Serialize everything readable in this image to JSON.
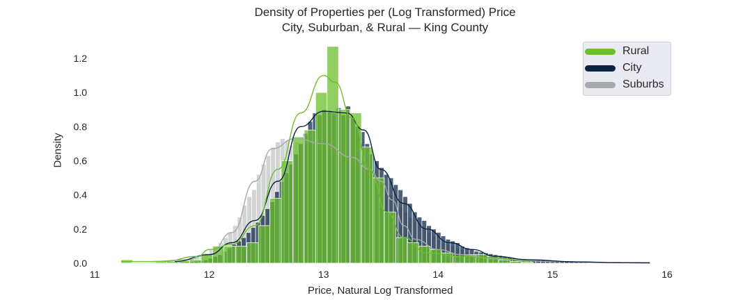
{
  "chart_data": {
    "type": "histogram",
    "title": "Density of Properties per (Log Transformed) Price",
    "subtitle": "City, Suburban, & Rural — King County",
    "xlabel": "Price, Natural Log Transformed",
    "ylabel": "Density",
    "xlim": [
      11,
      16
    ],
    "ylim": [
      0,
      1.3
    ],
    "xticks": [
      "11",
      "12",
      "13",
      "14",
      "15",
      "16"
    ],
    "yticks": [
      "0.0",
      "0.2",
      "0.4",
      "0.6",
      "0.8",
      "1.0",
      "1.2"
    ],
    "grid": false,
    "legend_position": "top-right",
    "series": [
      {
        "name": "Suburbs",
        "color": "#a5aaab",
        "bin_start": 11.5,
        "bin_width": 0.0415,
        "values": [
          0.005,
          0.005,
          0.006,
          0.008,
          0.01,
          0.012,
          0.015,
          0.02,
          0.028,
          0.035,
          0.045,
          0.06,
          0.08,
          0.1,
          0.12,
          0.15,
          0.18,
          0.22,
          0.27,
          0.34,
          0.39,
          0.43,
          0.52,
          0.58,
          0.63,
          0.68,
          0.71,
          0.73,
          0.72,
          0.69,
          0.71,
          0.7,
          0.7,
          0.7,
          0.69,
          0.67,
          0.66,
          0.66,
          0.64,
          0.63,
          0.62,
          0.6,
          0.58,
          0.57,
          0.55,
          0.52,
          0.5,
          0.48,
          0.46,
          0.44,
          0.4,
          0.37,
          0.33,
          0.3,
          0.27,
          0.24,
          0.22,
          0.2,
          0.18,
          0.16,
          0.14,
          0.12,
          0.11,
          0.1,
          0.09,
          0.08,
          0.07,
          0.06,
          0.055,
          0.05,
          0.045,
          0.04,
          0.035,
          0.03,
          0.028,
          0.026,
          0.024,
          0.022,
          0.02,
          0.018,
          0.016,
          0.015,
          0.014,
          0.012,
          0.011,
          0.01,
          0.009,
          0.008,
          0.007,
          0.006,
          0.005,
          0.005,
          0.004,
          0.004,
          0.004,
          0.003,
          0.003,
          0.003,
          0.002,
          0.002,
          0.002,
          0.002,
          0.002,
          0.002,
          0.002,
          0.002,
          0.002,
          0.002,
          0.002,
          0.002
        ],
        "kde": [
          [
            11.5,
            0.01
          ],
          [
            11.8,
            0.02
          ],
          [
            12.0,
            0.05
          ],
          [
            12.2,
            0.18
          ],
          [
            12.4,
            0.48
          ],
          [
            12.55,
            0.67
          ],
          [
            12.75,
            0.73
          ],
          [
            13.0,
            0.7
          ],
          [
            13.25,
            0.62
          ],
          [
            13.4,
            0.55
          ],
          [
            13.5,
            0.48
          ],
          [
            13.6,
            0.37
          ],
          [
            13.7,
            0.22
          ],
          [
            13.8,
            0.14
          ],
          [
            14.0,
            0.08
          ],
          [
            14.2,
            0.05
          ],
          [
            14.5,
            0.025
          ],
          [
            15.0,
            0.01
          ],
          [
            15.5,
            0.004
          ],
          [
            15.85,
            0.002
          ]
        ]
      },
      {
        "name": "City",
        "color": "#0a2444",
        "bin_start": 11.7,
        "bin_width": 0.0415,
        "values": [
          0.005,
          0.006,
          0.008,
          0.01,
          0.012,
          0.015,
          0.02,
          0.03,
          0.04,
          0.05,
          0.07,
          0.09,
          0.11,
          0.13,
          0.15,
          0.18,
          0.21,
          0.24,
          0.28,
          0.32,
          0.36,
          0.42,
          0.48,
          0.53,
          0.58,
          0.64,
          0.7,
          0.76,
          0.83,
          0.88,
          0.87,
          0.9,
          0.89,
          0.88,
          0.91,
          0.87,
          0.92,
          0.85,
          0.8,
          0.77,
          0.7,
          0.64,
          0.6,
          0.56,
          0.52,
          0.5,
          0.46,
          0.43,
          0.39,
          0.35,
          0.3,
          0.27,
          0.25,
          0.22,
          0.2,
          0.18,
          0.16,
          0.14,
          0.13,
          0.12,
          0.1,
          0.09,
          0.08,
          0.07,
          0.065,
          0.06,
          0.055,
          0.05,
          0.045,
          0.04,
          0.035,
          0.03,
          0.028,
          0.026,
          0.024,
          0.022,
          0.02,
          0.018,
          0.016,
          0.014,
          0.012,
          0.011,
          0.01,
          0.009,
          0.008,
          0.007,
          0.006,
          0.005,
          0.005,
          0.004,
          0.004,
          0.004,
          0.003,
          0.003,
          0.003,
          0.002,
          0.002
        ],
        "kde": [
          [
            11.7,
            0.01
          ],
          [
            12.0,
            0.05
          ],
          [
            12.2,
            0.12
          ],
          [
            12.4,
            0.25
          ],
          [
            12.6,
            0.48
          ],
          [
            12.8,
            0.8
          ],
          [
            13.0,
            0.89
          ],
          [
            13.2,
            0.88
          ],
          [
            13.35,
            0.78
          ],
          [
            13.5,
            0.55
          ],
          [
            13.7,
            0.35
          ],
          [
            13.9,
            0.2
          ],
          [
            14.1,
            0.12
          ],
          [
            14.3,
            0.08
          ],
          [
            14.5,
            0.04
          ],
          [
            14.8,
            0.02
          ],
          [
            15.2,
            0.008
          ],
          [
            15.6,
            0.003
          ],
          [
            15.85,
            0.002
          ]
        ]
      },
      {
        "name": "Rural",
        "color": "#6cbf2f",
        "bin_start": 11.23,
        "bin_width": 0.1,
        "values": [
          0.02,
          0.005,
          0.005,
          0.008,
          0.01,
          0.015,
          0.02,
          0.05,
          0.1,
          0.1,
          0.1,
          0.12,
          0.22,
          0.38,
          0.6,
          0.74,
          0.78,
          1.0,
          1.27,
          0.9,
          0.88,
          0.68,
          0.5,
          0.3,
          0.15,
          0.12,
          0.1,
          0.08,
          0.06,
          0.04,
          0.05,
          0.05,
          0.04,
          0.02,
          0.01,
          0.005
        ],
        "kde": [
          [
            11.23,
            0.01
          ],
          [
            11.6,
            0.01
          ],
          [
            11.9,
            0.04
          ],
          [
            12.0,
            0.08
          ],
          [
            12.2,
            0.11
          ],
          [
            12.4,
            0.22
          ],
          [
            12.6,
            0.55
          ],
          [
            12.8,
            0.88
          ],
          [
            13.0,
            1.1
          ],
          [
            13.1,
            1.06
          ],
          [
            13.25,
            0.85
          ],
          [
            13.4,
            0.55
          ],
          [
            13.55,
            0.3
          ],
          [
            13.7,
            0.15
          ],
          [
            13.9,
            0.06
          ],
          [
            14.2,
            0.04
          ],
          [
            14.5,
            0.03
          ],
          [
            14.8,
            0.01
          ]
        ]
      }
    ]
  }
}
